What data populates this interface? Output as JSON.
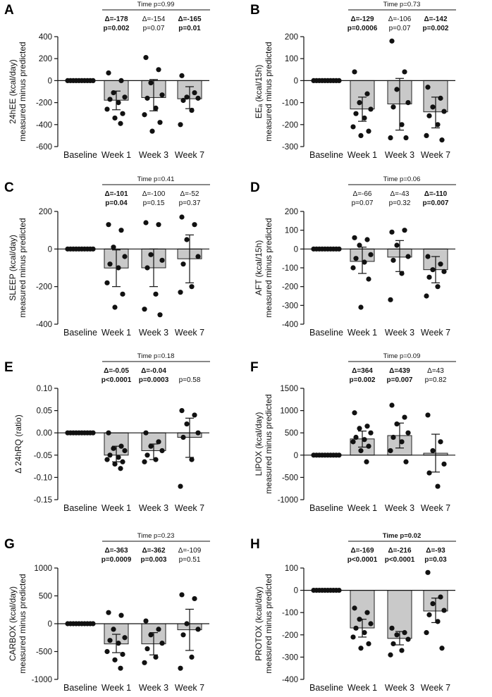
{
  "chart_data": [
    {
      "type": "bar",
      "panel": "A",
      "title": "",
      "ylabel_lines": [
        "24hEE (kcal/day)",
        "measured minus predicted"
      ],
      "categories": [
        "Baseline",
        "Week 1",
        "Week 3",
        "Week 7"
      ],
      "ylim": [
        -600,
        400
      ],
      "yticks": [
        -600,
        -400,
        -200,
        0,
        200,
        400
      ],
      "bars": [
        0,
        -178,
        -154,
        -165
      ],
      "error": [
        null,
        [
          -265,
          -95
        ],
        [
          -275,
          10
        ],
        [
          -255,
          -55
        ]
      ],
      "points": [
        [
          0,
          0,
          0,
          0,
          0,
          0,
          0,
          0,
          0,
          0
        ],
        [
          70,
          0,
          -110,
          -150,
          -170,
          -200,
          -260,
          -300,
          -340,
          -390
        ],
        [
          210,
          100,
          -20,
          -130,
          -160,
          -250,
          -310,
          -380,
          -460
        ],
        [
          45,
          -110,
          -150,
          -160,
          -180,
          -270,
          -400
        ]
      ],
      "time_text": "Time p=0.99",
      "annotations": [
        {
          "delta": "Δ=-178",
          "p": "p=0.002",
          "bold": true
        },
        {
          "delta": "Δ=-154",
          "p": "p=0.07",
          "bold": false
        },
        {
          "delta": "Δ=-165",
          "p": "p=0.01",
          "bold": true
        }
      ]
    },
    {
      "type": "bar",
      "panel": "B",
      "title": "",
      "ylabel_lines": [
        "EEₐ (kcal/15h)",
        "measured minus predicted"
      ],
      "categories": [
        "Baseline",
        "Week 1",
        "Week 3",
        "Week 7"
      ],
      "ylim": [
        -300,
        200
      ],
      "yticks": [
        -300,
        -200,
        -100,
        0,
        100,
        200
      ],
      "bars": [
        0,
        -129,
        -106,
        -142
      ],
      "error": [
        null,
        [
          -185,
          -75
        ],
        [
          -225,
          10
        ],
        [
          -215,
          -75
        ]
      ],
      "points": [
        [
          0,
          0,
          0,
          0,
          0,
          0,
          0,
          0,
          0,
          0
        ],
        [
          40,
          -60,
          -100,
          -130,
          -150,
          -170,
          -210,
          -230,
          -250
        ],
        [
          180,
          40,
          -40,
          -100,
          -120,
          -200,
          -260,
          -260
        ],
        [
          -30,
          -80,
          -120,
          -140,
          -160,
          -200,
          -250,
          -270
        ]
      ],
      "time_text": "Time p=0.73",
      "annotations": [
        {
          "delta": "Δ=-129",
          "p": "p=0.0006",
          "bold": true
        },
        {
          "delta": "Δ=-106",
          "p": "p=0.07",
          "bold": false
        },
        {
          "delta": "Δ=-142",
          "p": "p=0.002",
          "bold": true
        }
      ]
    },
    {
      "type": "bar",
      "panel": "C",
      "title": "",
      "ylabel_lines": [
        "SLEEP (kcal/day)",
        "measured minus predicted"
      ],
      "categories": [
        "Baseline",
        "Week 1",
        "Week 3",
        "Week 7"
      ],
      "ylim": [
        -400,
        200
      ],
      "yticks": [
        -400,
        -200,
        0,
        200
      ],
      "bars": [
        0,
        -101,
        -100,
        -52
      ],
      "error": [
        null,
        [
          -200,
          -5
        ],
        [
          -200,
          0
        ],
        [
          -180,
          75
        ]
      ],
      "points": [
        [
          0,
          0,
          0,
          0,
          0,
          0,
          0,
          0,
          0,
          0
        ],
        [
          130,
          100,
          10,
          -40,
          -80,
          -100,
          -180,
          -240,
          -310
        ],
        [
          140,
          130,
          -30,
          -60,
          -100,
          -240,
          -320,
          -350
        ],
        [
          170,
          130,
          50,
          -40,
          -80,
          -200,
          -230
        ]
      ],
      "time_text": "Time p=0.41",
      "annotations": [
        {
          "delta": "Δ=-101",
          "p": "p=0.04",
          "bold": true
        },
        {
          "delta": "Δ=-100",
          "p": "p=0.15",
          "bold": false
        },
        {
          "delta": "Δ=-52",
          "p": "p=0.37",
          "bold": false
        }
      ]
    },
    {
      "type": "bar",
      "panel": "D",
      "title": "",
      "ylabel_lines": [
        "AFT (kcal/15h)",
        "measured minus predicted"
      ],
      "categories": [
        "Baseline",
        "Week 1",
        "Week 3",
        "Week 7"
      ],
      "ylim": [
        -400,
        200
      ],
      "yticks": [
        -400,
        -300,
        -200,
        -100,
        0,
        100,
        200
      ],
      "bars": [
        0,
        -66,
        -43,
        -110
      ],
      "error": [
        null,
        [
          -130,
          10
        ],
        [
          -120,
          45
        ],
        [
          -180,
          -40
        ]
      ],
      "points": [
        [
          0,
          0,
          0,
          0,
          0,
          0,
          0,
          0,
          0,
          0
        ],
        [
          60,
          50,
          20,
          -30,
          -50,
          -70,
          -100,
          -160,
          -310
        ],
        [
          90,
          100,
          20,
          -40,
          -60,
          -130,
          -270
        ],
        [
          -40,
          -80,
          -110,
          -120,
          -150,
          -200,
          -250
        ]
      ],
      "time_text": "Time p=0.06",
      "annotations": [
        {
          "delta": "Δ=-66",
          "p": "p=0.07",
          "bold": false
        },
        {
          "delta": "Δ=-43",
          "p": "p=0.32",
          "bold": false
        },
        {
          "delta": "Δ=-110",
          "p": "p=0.007",
          "bold": true
        }
      ]
    },
    {
      "type": "bar",
      "panel": "E",
      "title": "",
      "ylabel_lines": [
        "Δ 24hRQ (ratio)"
      ],
      "categories": [
        "Baseline",
        "Week 1",
        "Week 3",
        "Week 7"
      ],
      "ylim": [
        -0.15,
        0.1
      ],
      "yticks": [
        -0.15,
        -0.1,
        -0.05,
        0.0,
        0.05,
        0.1
      ],
      "tick_labels": [
        "-0.15",
        "-0.10",
        "-0.05",
        "0.00",
        "0.05",
        "0.10"
      ],
      "bars": [
        0,
        -0.05,
        -0.04,
        -0.01
      ],
      "error": [
        null,
        [
          -0.065,
          -0.03
        ],
        [
          -0.06,
          -0.025
        ],
        [
          -0.055,
          0.033
        ]
      ],
      "points": [
        [
          0,
          0,
          0,
          0,
          0,
          0,
          0,
          0,
          0,
          0
        ],
        [
          0.0,
          -0.03,
          -0.035,
          -0.04,
          -0.05,
          -0.055,
          -0.06,
          -0.065,
          -0.07,
          -0.08
        ],
        [
          -0.0,
          -0.02,
          -0.03,
          -0.04,
          -0.05,
          -0.06,
          -0.065
        ],
        [
          0.05,
          0.04,
          0.02,
          0.0,
          -0.01,
          -0.06,
          -0.12
        ]
      ],
      "time_text": "Time p=0.18",
      "annotations": [
        {
          "delta": "Δ=-0.05",
          "p": "p<0.0001",
          "bold": true
        },
        {
          "delta": "Δ=-0.04",
          "p": "p=0.0003",
          "bold": true
        },
        {
          "delta": "",
          "p": "p=0.58",
          "bold": false
        }
      ]
    },
    {
      "type": "bar",
      "panel": "F",
      "title": "",
      "ylabel_lines": [
        "LIPOX (kcal/day)",
        "measured minus predicted"
      ],
      "categories": [
        "Baseline",
        "Week 1",
        "Week 3",
        "Week 7"
      ],
      "ylim": [
        -1000,
        1500
      ],
      "yticks": [
        -1000,
        -500,
        0,
        500,
        1000,
        1500
      ],
      "bars": [
        0,
        364,
        439,
        43
      ],
      "error": [
        null,
        [
          180,
          540
        ],
        [
          160,
          720
        ],
        [
          -380,
          470
        ]
      ],
      "points": [
        [
          0,
          0,
          0,
          0,
          0,
          0,
          0,
          0,
          0,
          0
        ],
        [
          950,
          650,
          600,
          500,
          400,
          350,
          300,
          200,
          100,
          -150
        ],
        [
          1120,
          850,
          700,
          500,
          400,
          300,
          100,
          -150
        ],
        [
          900,
          300,
          100,
          -200,
          -400,
          -700
        ]
      ],
      "time_text": "Time p=0.09",
      "annotations": [
        {
          "delta": "Δ=364",
          "p": "p=0.002",
          "bold": true
        },
        {
          "delta": "Δ=439",
          "p": "p=0.007",
          "bold": true
        },
        {
          "delta": "Δ=43",
          "p": "p=0.82",
          "bold": false
        }
      ]
    },
    {
      "type": "bar",
      "panel": "G",
      "title": "",
      "ylabel_lines": [
        "CARBOX (kcal/day)",
        "measured minus predicted"
      ],
      "categories": [
        "Baseline",
        "Week 1",
        "Week 3",
        "Week 7"
      ],
      "ylim": [
        -1000,
        1000
      ],
      "yticks": [
        -1000,
        -500,
        0,
        500,
        1000
      ],
      "bars": [
        0,
        -363,
        -362,
        -109
      ],
      "error": [
        null,
        [
          -520,
          -190
        ],
        [
          -560,
          -160
        ],
        [
          -480,
          260
        ]
      ],
      "points": [
        [
          0,
          0,
          0,
          0,
          0,
          0,
          0,
          0,
          0,
          0
        ],
        [
          200,
          150,
          -100,
          -250,
          -300,
          -350,
          -500,
          -550,
          -650,
          -800
        ],
        [
          50,
          -100,
          -200,
          -350,
          -450,
          -600,
          -700
        ],
        [
          520,
          450,
          0,
          -100,
          -200,
          -600,
          -800
        ]
      ],
      "time_text": "Time p=0.23",
      "annotations": [
        {
          "delta": "Δ=-363",
          "p": "p=0.0009",
          "bold": true
        },
        {
          "delta": "Δ=-362",
          "p": "p=0.003",
          "bold": true
        },
        {
          "delta": "Δ=-109",
          "p": "p=0.51",
          "bold": false
        }
      ]
    },
    {
      "type": "bar",
      "panel": "H",
      "title": "",
      "ylabel_lines": [
        "PROTOX (kcal/day)",
        "measured minus predicted"
      ],
      "categories": [
        "Baseline",
        "Week 1",
        "Week 3",
        "Week 7"
      ],
      "ylim": [
        -400,
        100
      ],
      "yticks": [
        -400,
        -300,
        -200,
        -100,
        0,
        100
      ],
      "bars": [
        0,
        -169,
        -216,
        -93
      ],
      "error": [
        null,
        [
          -210,
          -130
        ],
        [
          -245,
          -185
        ],
        [
          -145,
          -35
        ]
      ],
      "points": [
        [
          0,
          0,
          0,
          0,
          0,
          0,
          0,
          0,
          0,
          0
        ],
        [
          -80,
          -100,
          -130,
          -150,
          -170,
          -190,
          -210,
          -240,
          -260
        ],
        [
          -170,
          -190,
          -200,
          -220,
          -240,
          -270,
          -290
        ],
        [
          80,
          -30,
          -60,
          -90,
          -110,
          -140,
          -190,
          -260
        ]
      ],
      "time_text": "Time p=0.02",
      "time_bold": true,
      "annotations": [
        {
          "delta": "Δ=-169",
          "p": "p<0.0001",
          "bold": true
        },
        {
          "delta": "Δ=-216",
          "p": "p<0.0001",
          "bold": true
        },
        {
          "delta": "Δ=-93",
          "p": "p=0.03",
          "bold": true
        }
      ]
    }
  ]
}
